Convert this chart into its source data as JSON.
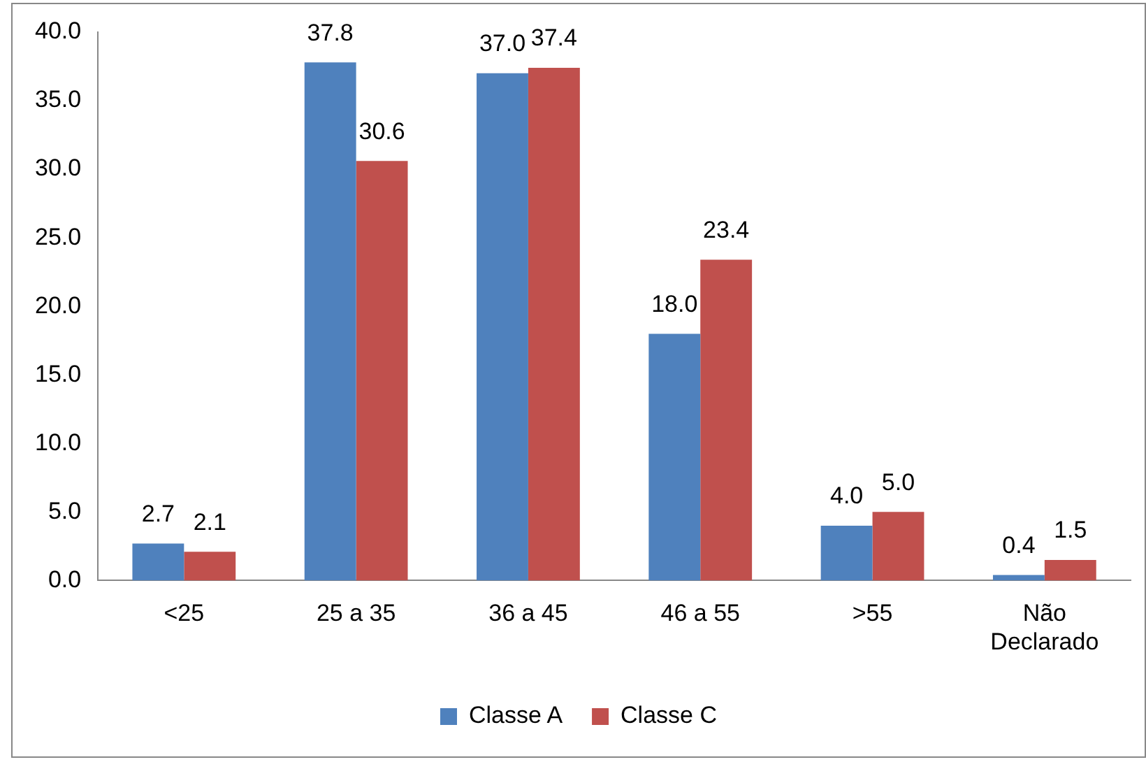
{
  "chart_data": {
    "type": "bar",
    "categories": [
      "<25",
      "25 a 35",
      "36 a 45",
      "46 a 55",
      ">55",
      "Não Declarado"
    ],
    "series": [
      {
        "name": "Classe A",
        "color": "#4f81bd",
        "values": [
          2.7,
          37.8,
          37.0,
          18.0,
          4.0,
          0.4
        ],
        "value_labels": [
          "2.7",
          "37.8",
          "37.0",
          "18.0",
          "4.0",
          "0.4"
        ]
      },
      {
        "name": "Classe C",
        "color": "#c0504d",
        "values": [
          2.1,
          30.6,
          37.4,
          23.4,
          5.0,
          1.5
        ],
        "value_labels": [
          "2.1",
          "30.6",
          "37.4",
          "23.4",
          "5.0",
          "1.5"
        ]
      }
    ],
    "ylim": [
      0,
      40
    ],
    "yticks": [
      {
        "value": 0,
        "label": "0.0"
      },
      {
        "value": 5,
        "label": "5.0"
      },
      {
        "value": 10,
        "label": "10.0"
      },
      {
        "value": 15,
        "label": "15.0"
      },
      {
        "value": 20,
        "label": "20.0"
      },
      {
        "value": 25,
        "label": "25.0"
      },
      {
        "value": 30,
        "label": "30.0"
      },
      {
        "value": 35,
        "label": "35.0"
      },
      {
        "value": 40,
        "label": "40.0"
      }
    ],
    "grid": false,
    "legend": "bottom"
  }
}
